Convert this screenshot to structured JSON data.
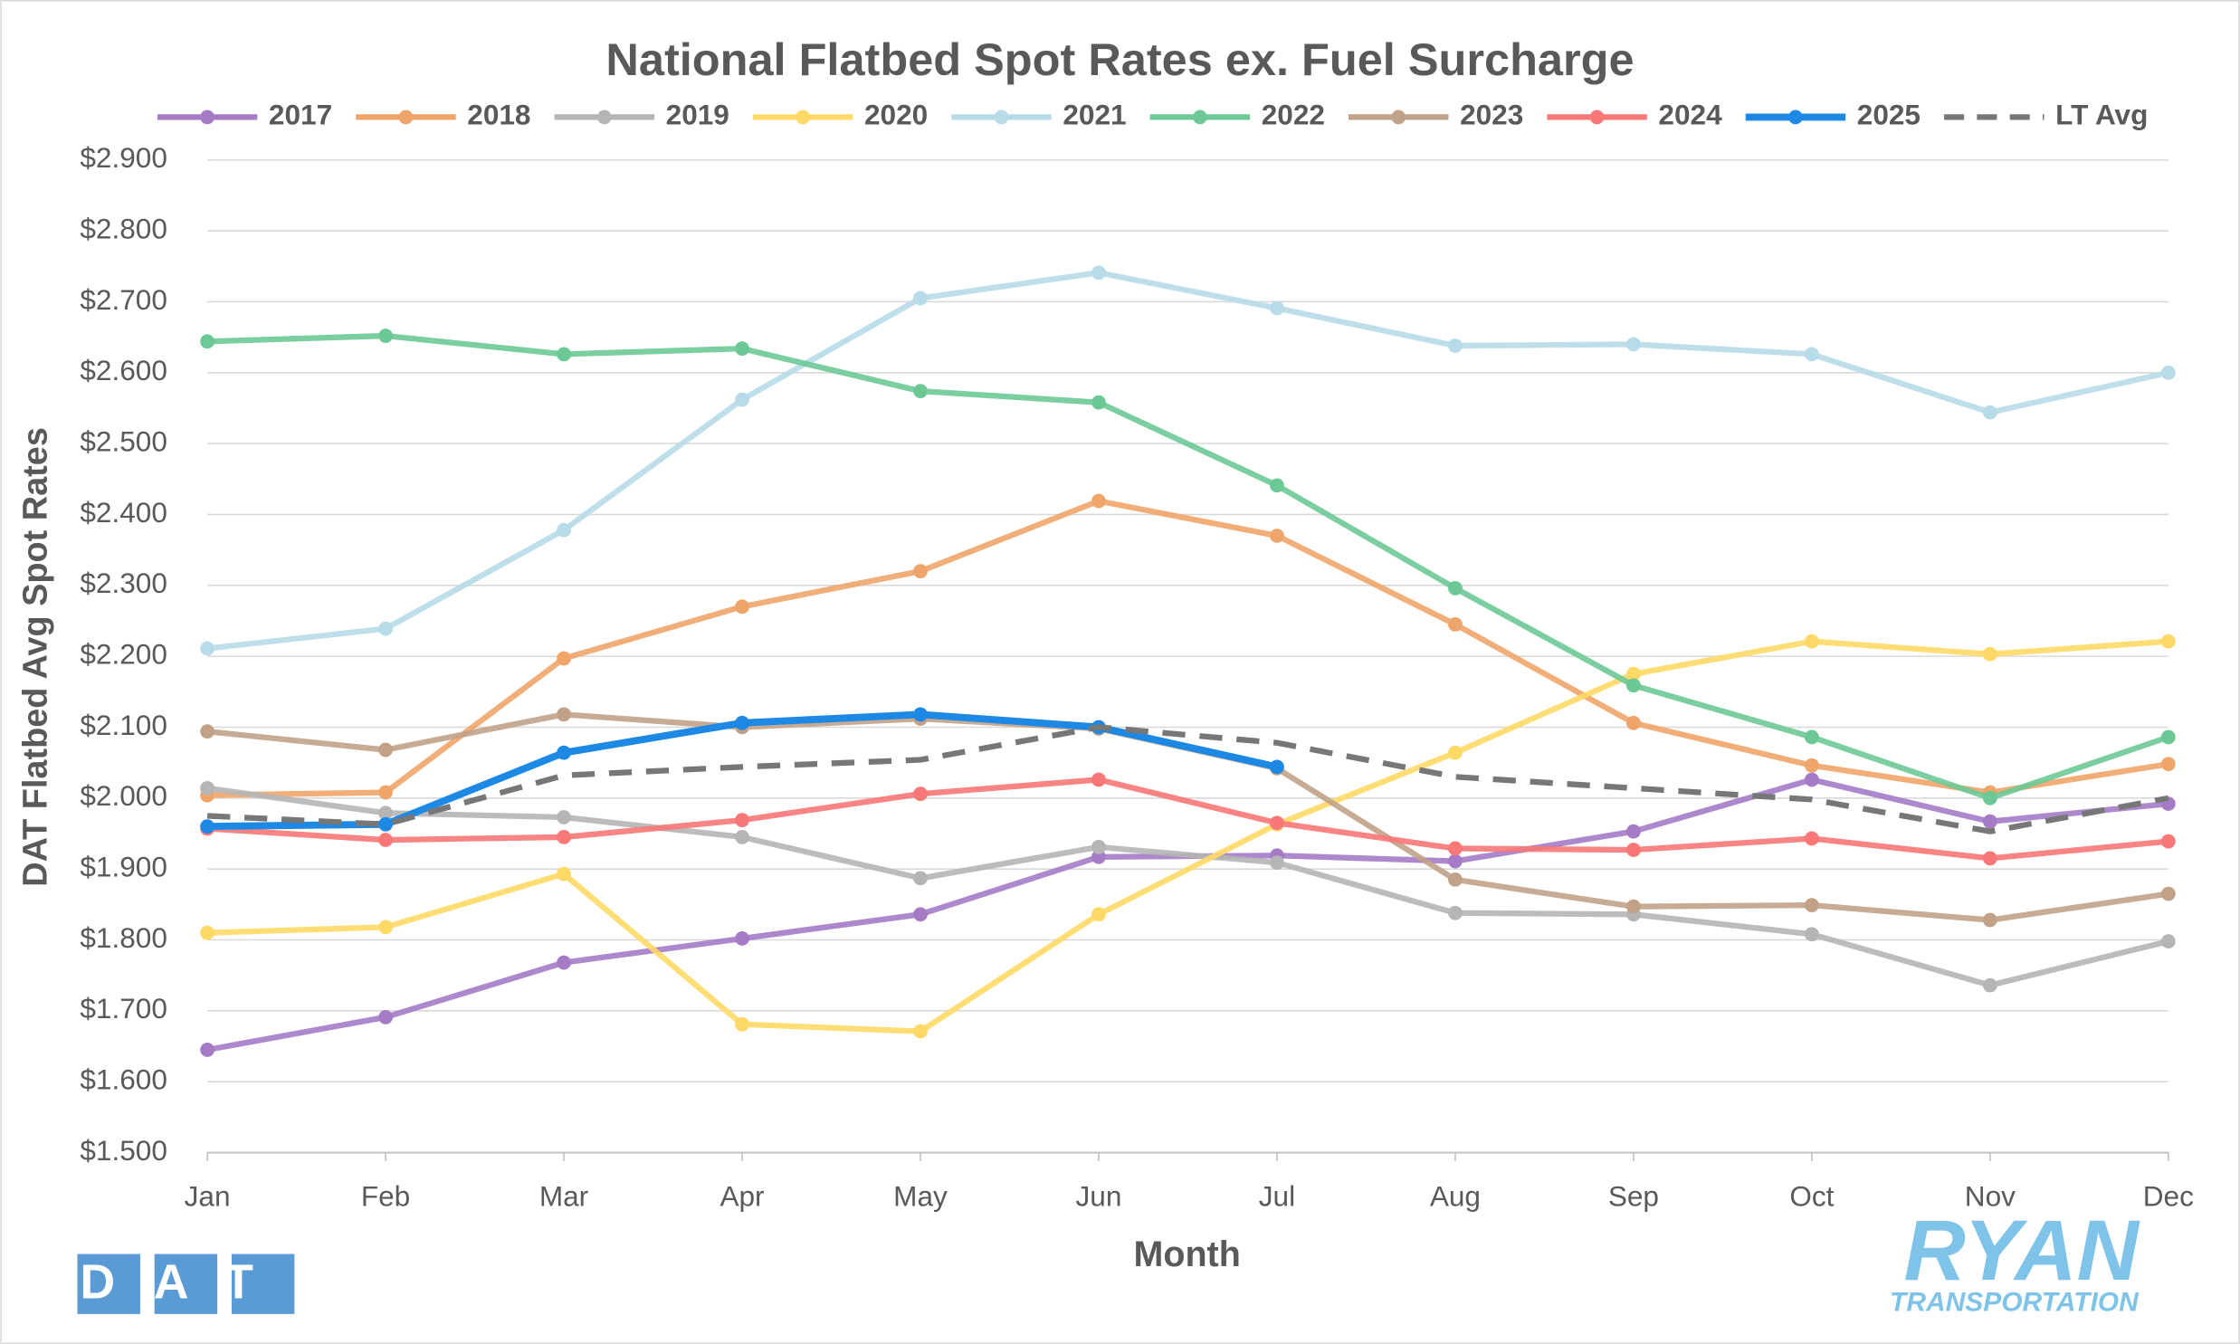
{
  "chart_data": {
    "type": "line",
    "title": "National Flatbed Spot Rates ex. Fuel Surcharge",
    "x_label": "Month",
    "y_label": "DAT Flatbed Avg Spot Rates",
    "categories": [
      "Jan",
      "Feb",
      "Mar",
      "Apr",
      "May",
      "Jun",
      "Jul",
      "Aug",
      "Sep",
      "Oct",
      "Nov",
      "Dec"
    ],
    "ylim": [
      1.5,
      2.9
    ],
    "yticks": [
      {
        "value": 1.5,
        "label": "$1.500"
      },
      {
        "value": 1.6,
        "label": "$1.600"
      },
      {
        "value": 1.7,
        "label": "$1.700"
      },
      {
        "value": 1.8,
        "label": "$1.800"
      },
      {
        "value": 1.9,
        "label": "$1.900"
      },
      {
        "value": 2.0,
        "label": "$2.000"
      },
      {
        "value": 2.1,
        "label": "$2.100"
      },
      {
        "value": 2.2,
        "label": "$2.200"
      },
      {
        "value": 2.3,
        "label": "$2.300"
      },
      {
        "value": 2.4,
        "label": "$2.400"
      },
      {
        "value": 2.5,
        "label": "$2.500"
      },
      {
        "value": 2.6,
        "label": "$2.600"
      },
      {
        "value": 2.7,
        "label": "$2.700"
      },
      {
        "value": 2.8,
        "label": "$2.800"
      },
      {
        "value": 2.9,
        "label": "$2.900"
      }
    ],
    "grid": true,
    "legend": "top",
    "series": [
      {
        "name": "2017",
        "color": "#a57bc6",
        "values": [
          1.645,
          1.691,
          1.768,
          1.802,
          1.836,
          1.917,
          1.919,
          1.911,
          1.953,
          2.026,
          1.967,
          1.992
        ]
      },
      {
        "name": "2018",
        "color": "#efa56a",
        "values": [
          2.004,
          2.008,
          2.197,
          2.27,
          2.32,
          2.419,
          2.37,
          2.245,
          2.106,
          2.046,
          2.008,
          2.048
        ]
      },
      {
        "name": "2019",
        "color": "#b5b5b5",
        "values": [
          2.014,
          1.979,
          1.973,
          1.945,
          1.887,
          1.931,
          1.909,
          1.838,
          1.836,
          1.808,
          1.736,
          1.798
        ]
      },
      {
        "name": "2020",
        "color": "#ffd966",
        "values": [
          1.81,
          1.818,
          1.893,
          1.681,
          1.671,
          1.836,
          1.963,
          2.064,
          2.175,
          2.221,
          2.203,
          2.221
        ]
      },
      {
        "name": "2021",
        "color": "#b7dbe8",
        "values": [
          2.211,
          2.239,
          2.378,
          2.562,
          2.705,
          2.741,
          2.691,
          2.638,
          2.64,
          2.626,
          2.544,
          2.6
        ]
      },
      {
        "name": "2022",
        "color": "#6cc995",
        "values": [
          2.644,
          2.652,
          2.626,
          2.634,
          2.574,
          2.558,
          2.441,
          2.296,
          2.159,
          2.086,
          2.0,
          2.086
        ]
      },
      {
        "name": "2023",
        "color": "#c1a288",
        "values": [
          2.094,
          2.068,
          2.118,
          2.1,
          2.112,
          2.098,
          2.042,
          1.885,
          1.847,
          1.849,
          1.828,
          1.865
        ]
      },
      {
        "name": "2024",
        "color": "#f87777",
        "values": [
          1.957,
          1.941,
          1.945,
          1.969,
          2.006,
          2.026,
          1.965,
          1.929,
          1.927,
          1.943,
          1.915,
          1.939
        ]
      },
      {
        "name": "2025",
        "color": "#1e88e5",
        "bold": true,
        "values": [
          1.96,
          1.963,
          2.064,
          2.106,
          2.118,
          2.1,
          2.044,
          null,
          null,
          null,
          null,
          null
        ]
      },
      {
        "name": "LT Avg",
        "color": "#777777",
        "dashed": true,
        "values": [
          1.975,
          1.963,
          2.032,
          2.044,
          2.054,
          2.1,
          2.078,
          2.03,
          2.014,
          1.998,
          1.953,
          2.0
        ]
      }
    ]
  },
  "logos": {
    "left": "DAT",
    "right": "RYAN",
    "right_sub": "TRANSPORTATION"
  }
}
